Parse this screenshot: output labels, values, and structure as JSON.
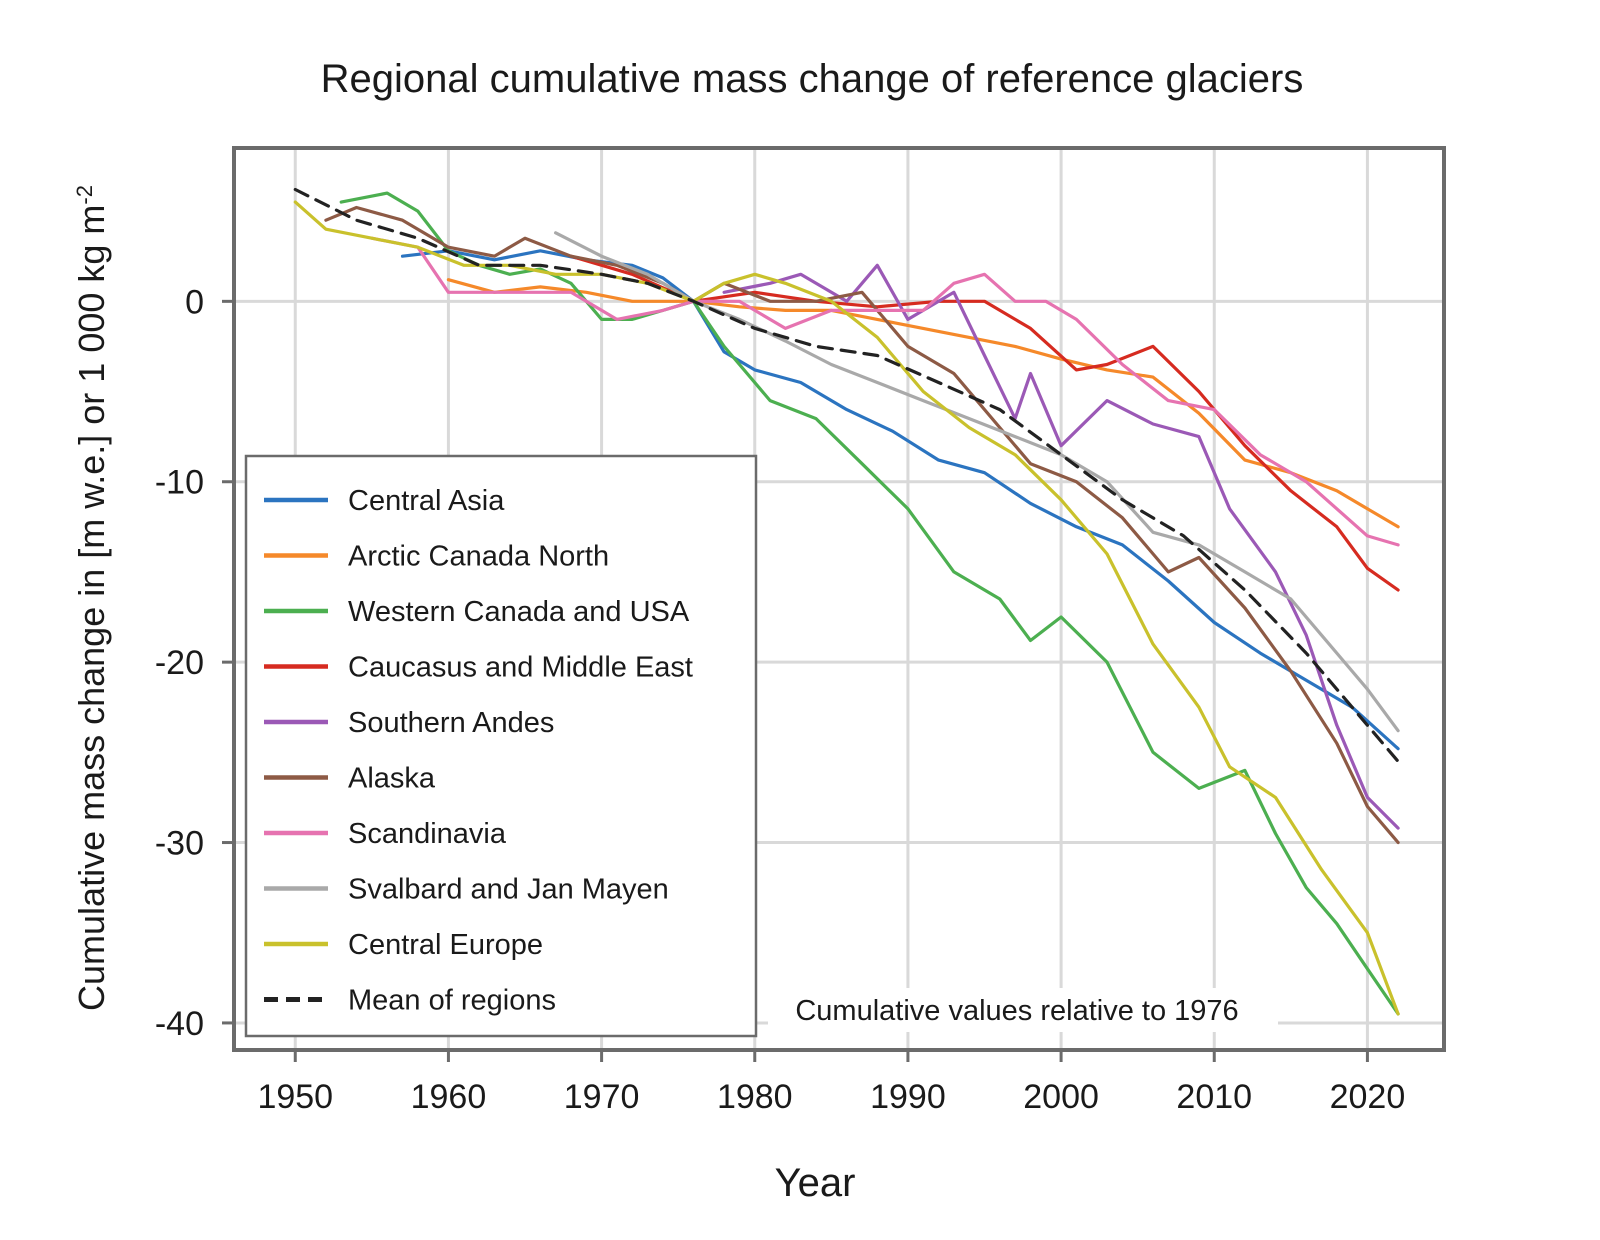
{
  "chart_data": {
    "type": "line",
    "title": "Regional cumulative mass change of reference glaciers",
    "xlabel": "Year",
    "ylabel": "Cumulative mass change in [m w.e.] or 1 000 kg m",
    "ylabel_superscript": "-2",
    "xlim": [
      1946,
      2025
    ],
    "ylim": [
      -41.5,
      8.5
    ],
    "x_ticks": [
      1950,
      1960,
      1970,
      1980,
      1990,
      2000,
      2010,
      2020
    ],
    "y_ticks": [
      0,
      -10,
      -20,
      -30,
      -40
    ],
    "grid": true,
    "legend_position": "bottom-left",
    "annotation": "Cumulative values relative to 1976",
    "series": [
      {
        "name": "Central Asia",
        "color": "#2b74c0",
        "dashed": false,
        "x": [
          1957,
          1960,
          1963,
          1966,
          1969,
          1972,
          1974,
          1976,
          1978,
          1980,
          1983,
          1986,
          1989,
          1992,
          1995,
          1998,
          2001,
          2004,
          2007,
          2010,
          2013,
          2016,
          2019,
          2022
        ],
        "y": [
          2.5,
          2.8,
          2.3,
          2.8,
          2.3,
          2.0,
          1.3,
          0.0,
          -2.8,
          -3.8,
          -4.5,
          -6.0,
          -7.2,
          -8.8,
          -9.5,
          -11.2,
          -12.5,
          -13.5,
          -15.5,
          -17.8,
          -19.5,
          -21.0,
          -22.5,
          -24.8
        ]
      },
      {
        "name": "Arctic Canada North",
        "color": "#f5892a",
        "dashed": false,
        "x": [
          1960,
          1963,
          1966,
          1969,
          1972,
          1976,
          1979,
          1982,
          1985,
          1988,
          1991,
          1994,
          1997,
          2000,
          2003,
          2006,
          2009,
          2012,
          2015,
          2018,
          2020,
          2022
        ],
        "y": [
          1.2,
          0.5,
          0.8,
          0.5,
          0.0,
          0.0,
          -0.3,
          -0.5,
          -0.5,
          -1.0,
          -1.5,
          -2.0,
          -2.5,
          -3.2,
          -3.8,
          -4.2,
          -6.2,
          -8.8,
          -9.5,
          -10.5,
          -11.5,
          -12.5
        ]
      },
      {
        "name": "Western Canada and USA",
        "color": "#4caf50",
        "dashed": false,
        "x": [
          1953,
          1956,
          1958,
          1960,
          1962,
          1964,
          1966,
          1968,
          1970,
          1972,
          1974,
          1976,
          1978,
          1981,
          1984,
          1987,
          1990,
          1993,
          1996,
          1998,
          2000,
          2003,
          2006,
          2009,
          2012,
          2014,
          2016,
          2018,
          2020,
          2022
        ],
        "y": [
          5.5,
          6.0,
          5.0,
          2.8,
          2.0,
          1.5,
          1.8,
          1.0,
          -1.0,
          -1.0,
          -0.5,
          0.0,
          -2.5,
          -5.5,
          -6.5,
          -9.0,
          -11.5,
          -15.0,
          -16.5,
          -18.8,
          -17.5,
          -20.0,
          -25.0,
          -27.0,
          -26.0,
          -29.5,
          -32.5,
          -34.5,
          -37.0,
          -39.5
        ]
      },
      {
        "name": "Caucasus and Middle East",
        "color": "#d62b20",
        "dashed": false,
        "x": [
          1968,
          1972,
          1976,
          1980,
          1984,
          1988,
          1992,
          1995,
          1998,
          2001,
          2003,
          2006,
          2009,
          2012,
          2015,
          2018,
          2020,
          2022
        ],
        "y": [
          2.5,
          1.5,
          0.0,
          0.5,
          0.0,
          -0.3,
          0.0,
          0.0,
          -1.5,
          -3.8,
          -3.5,
          -2.5,
          -5.0,
          -8.0,
          -10.5,
          -12.5,
          -14.8,
          -16.0
        ]
      },
      {
        "name": "Southern Andes",
        "color": "#9b59b6",
        "dashed": false,
        "x": [
          1978,
          1981,
          1983,
          1986,
          1988,
          1990,
          1993,
          1995,
          1997,
          1998,
          2000,
          2003,
          2006,
          2009,
          2011,
          2014,
          2016,
          2018,
          2020,
          2022
        ],
        "y": [
          0.5,
          1.0,
          1.5,
          0.0,
          2.0,
          -1.0,
          0.5,
          -3.0,
          -6.5,
          -4.0,
          -8.0,
          -5.5,
          -6.8,
          -7.5,
          -11.5,
          -15.0,
          -18.5,
          -23.5,
          -27.5,
          -29.2
        ]
      },
      {
        "name": "Alaska",
        "color": "#8d5a45",
        "dashed": false,
        "x": [
          1952,
          1954,
          1957,
          1960,
          1963,
          1965,
          1968,
          1971,
          1974,
          1976,
          1978,
          1981,
          1984,
          1987,
          1990,
          1993,
          1996,
          1998,
          2001,
          2004,
          2007,
          2009,
          2012,
          2015,
          2018,
          2020,
          2022
        ],
        "y": [
          4.5,
          5.2,
          4.5,
          3.0,
          2.5,
          3.5,
          2.5,
          2.0,
          1.0,
          0.0,
          1.0,
          0.0,
          0.0,
          0.5,
          -2.5,
          -4.0,
          -7.0,
          -9.0,
          -10.0,
          -12.0,
          -15.0,
          -14.2,
          -17.0,
          -20.5,
          -24.5,
          -28.0,
          -30.0
        ]
      },
      {
        "name": "Scandinavia",
        "color": "#e673b0",
        "dashed": false,
        "x": [
          1955,
          1958,
          1960,
          1962,
          1965,
          1968,
          1971,
          1974,
          1976,
          1979,
          1982,
          1985,
          1988,
          1991,
          1993,
          1995,
          1997,
          1999,
          2001,
          2004,
          2007,
          2010,
          2013,
          2016,
          2018,
          2020,
          2022
        ],
        "y": [
          3.5,
          3.0,
          0.5,
          0.5,
          0.5,
          0.5,
          -1.0,
          -0.5,
          0.0,
          0.0,
          -1.5,
          -0.5,
          -0.5,
          -0.5,
          1.0,
          1.5,
          0.0,
          0.0,
          -1.0,
          -3.5,
          -5.5,
          -6.0,
          -8.5,
          -10.0,
          -11.5,
          -13.0,
          -13.5
        ]
      },
      {
        "name": "Svalbard and Jan Mayen",
        "color": "#a9a9a9",
        "dashed": false,
        "x": [
          1967,
          1970,
          1973,
          1976,
          1979,
          1982,
          1985,
          1988,
          1991,
          1994,
          1997,
          2000,
          2003,
          2006,
          2009,
          2012,
          2015,
          2018,
          2020,
          2022
        ],
        "y": [
          3.8,
          2.5,
          1.5,
          0.0,
          -1.0,
          -2.2,
          -3.5,
          -4.5,
          -5.5,
          -6.5,
          -7.5,
          -8.5,
          -10.0,
          -12.8,
          -13.5,
          -15.0,
          -16.5,
          -19.5,
          -21.5,
          -23.8
        ]
      },
      {
        "name": "Central Europe",
        "color": "#c9c12c",
        "dashed": false,
        "x": [
          1950,
          1952,
          1955,
          1958,
          1961,
          1964,
          1967,
          1970,
          1973,
          1976,
          1978,
          1980,
          1982,
          1985,
          1988,
          1991,
          1994,
          1997,
          2000,
          2003,
          2006,
          2009,
          2011,
          2014,
          2017,
          2020,
          2022
        ],
        "y": [
          5.5,
          4.0,
          3.5,
          3.0,
          2.0,
          2.0,
          1.5,
          1.5,
          1.0,
          0.0,
          1.0,
          1.5,
          1.0,
          0.0,
          -2.0,
          -5.0,
          -7.0,
          -8.5,
          -11.0,
          -14.0,
          -19.0,
          -22.5,
          -25.8,
          -27.5,
          -31.5,
          -35.0,
          -39.5
        ]
      },
      {
        "name": "Mean of regions",
        "color": "#222222",
        "dashed": true,
        "x": [
          1950,
          1954,
          1958,
          1962,
          1966,
          1970,
          1973,
          1976,
          1980,
          1984,
          1988,
          1992,
          1996,
          2000,
          2004,
          2008,
          2012,
          2016,
          2019,
          2022
        ],
        "y": [
          6.2,
          4.5,
          3.5,
          2.0,
          2.0,
          1.5,
          1.0,
          0.0,
          -1.5,
          -2.5,
          -3.0,
          -4.5,
          -6.0,
          -8.5,
          -11.0,
          -13.0,
          -16.0,
          -19.5,
          -22.5,
          -25.5
        ]
      }
    ]
  }
}
